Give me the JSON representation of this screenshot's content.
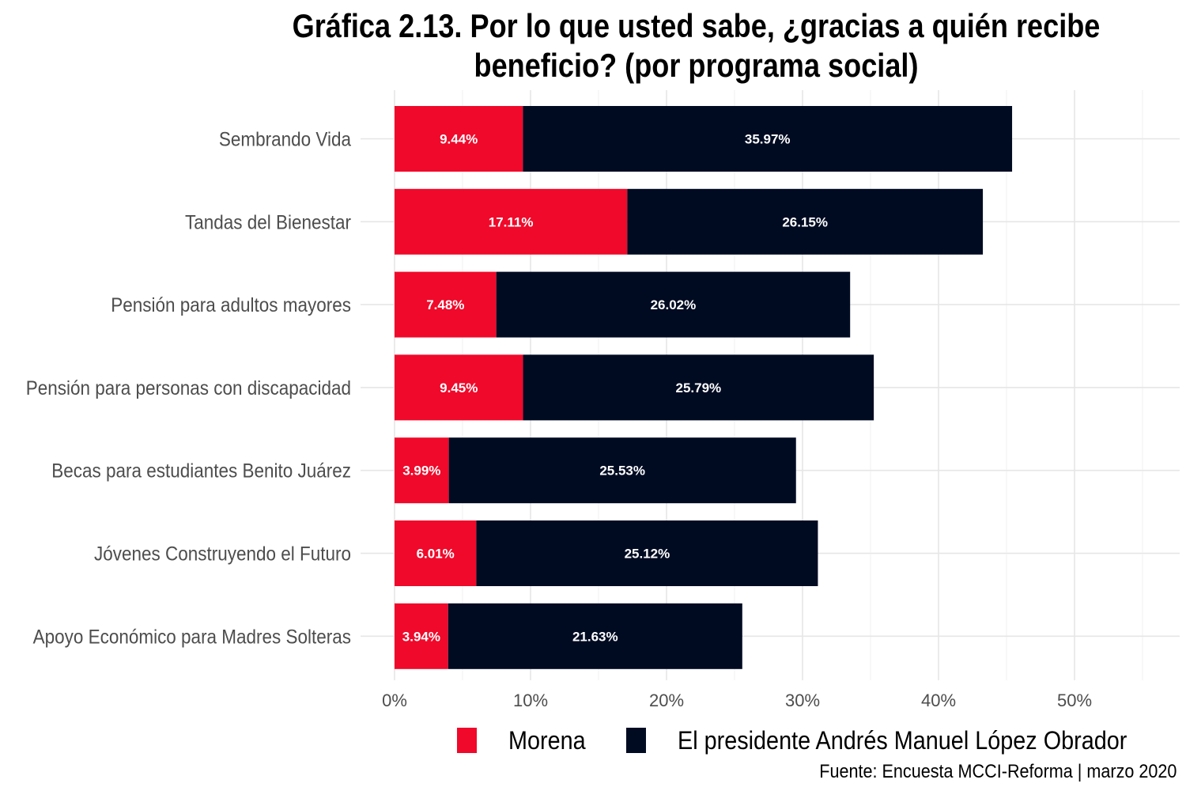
{
  "chart_data": {
    "type": "bar",
    "orientation": "horizontal",
    "stacked": true,
    "title_lines": [
      "Gráfica 2.13. Por lo que usted sabe, ¿gracias a quién recibe",
      "beneficio? (por programa social)"
    ],
    "categories": [
      "Sembrando Vida",
      "Tandas del Bienestar",
      "Pensión para adultos mayores",
      "Pensión para personas con discapacidad",
      "Becas para estudiantes Benito Juárez",
      "Jóvenes Construyendo el Futuro",
      "Apoyo Económico para Madres Solteras"
    ],
    "series": [
      {
        "name": "Morena",
        "color": "#F0092A",
        "values": [
          9.44,
          17.11,
          7.48,
          9.45,
          3.99,
          6.01,
          3.94
        ],
        "labels": [
          "9.44%",
          "17.11%",
          "7.48%",
          "9.45%",
          "3.99%",
          "6.01%",
          "3.94%"
        ]
      },
      {
        "name": "El presidente Andrés Manuel López Obrador",
        "color": "#000B22",
        "values": [
          35.97,
          26.15,
          26.02,
          25.79,
          25.53,
          25.12,
          21.63
        ],
        "labels": [
          "35.97%",
          "26.15%",
          "26.02%",
          "25.79%",
          "25.53%",
          "25.12%",
          "21.63%"
        ]
      }
    ],
    "xlim": [
      0,
      55
    ],
    "x_ticks": [
      0,
      10,
      20,
      30,
      40,
      50
    ],
    "x_tick_labels": [
      "0%",
      "10%",
      "20%",
      "30%",
      "40%",
      "50%"
    ],
    "xlabel": "",
    "ylabel": "",
    "grid": true,
    "legend_position": "bottom",
    "caption": "Fuente: Encuesta MCCI-Reforma | marzo 2020"
  }
}
